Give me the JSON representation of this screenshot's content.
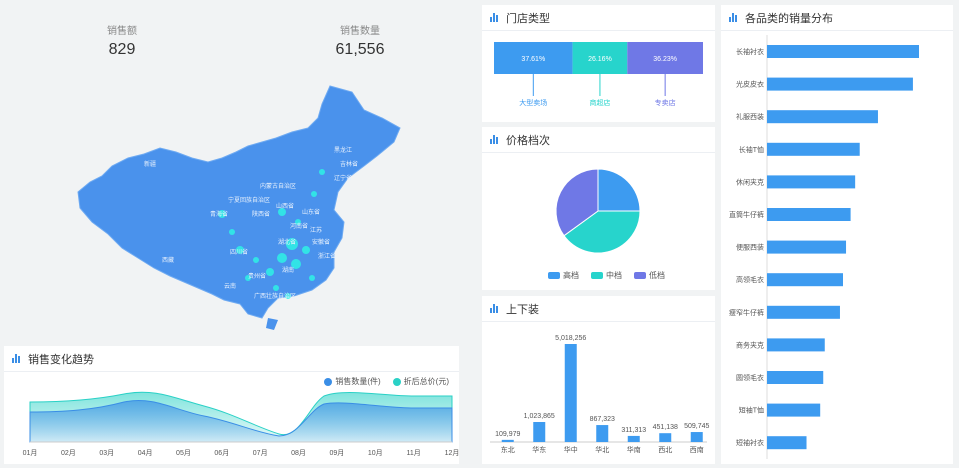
{
  "kpis": [
    {
      "label": "销售额",
      "value": "829"
    },
    {
      "label": "销售数量",
      "value": "61,556"
    }
  ],
  "map": {
    "regions": [
      "新疆",
      "西藏",
      "内蒙古自治区",
      "宁夏回族自治区",
      "青海省",
      "黑龙江",
      "吉林省",
      "辽宁省",
      "山西省",
      "陕西省",
      "四川省",
      "湖北省",
      "安徽省",
      "浙江省",
      "广西壮族自治区",
      "云南",
      "湖南",
      "贵州省",
      "江苏",
      "河南省",
      "山东省"
    ]
  },
  "trend": {
    "title": "销售变化趋势",
    "legend": [
      "销售数量(件)",
      "折后总价(元)"
    ],
    "colors": [
      "#3a8ee6",
      "#2ad1c6"
    ],
    "months": [
      "01月",
      "02月",
      "03月",
      "04月",
      "05月",
      "06月",
      "07月",
      "08月",
      "09月",
      "10月",
      "11月",
      "12月"
    ]
  },
  "store_type": {
    "title": "门店类型",
    "segments": [
      {
        "name": "大型卖场",
        "pct": "37.61%",
        "value": 37.61,
        "color": "#3d9bf0"
      },
      {
        "name": "商超店",
        "pct": "26.16%",
        "value": 26.16,
        "color": "#27d4cc"
      },
      {
        "name": "专卖店",
        "pct": "36.23%",
        "value": 36.23,
        "color": "#6f78e6"
      }
    ]
  },
  "price_tier": {
    "title": "价格档次",
    "slices": [
      {
        "name": "高档",
        "value": 25,
        "color": "#3d9bf0"
      },
      {
        "name": "中档",
        "value": 40,
        "color": "#27d4cc"
      },
      {
        "name": "低档",
        "value": 35,
        "color": "#6f78e6"
      }
    ]
  },
  "apparel": {
    "title": "上下装",
    "chart_data": {
      "type": "bar",
      "categories": [
        "东北",
        "华东",
        "华中",
        "华北",
        "华南",
        "西北",
        "西南"
      ],
      "values": [
        109979,
        1023865,
        5018256,
        867323,
        311313,
        451138,
        509745
      ],
      "labels": [
        "109,979",
        "1,023,865",
        "5,018,256",
        "867,323",
        "311,313",
        "451,138",
        "509,745"
      ],
      "color": "#3d9bf0"
    }
  },
  "category_sales": {
    "title": "各品类的销量分布",
    "chart_data": {
      "type": "bar",
      "orientation": "horizontal",
      "categories": [
        "长袖衬衣",
        "光皮皮衣",
        "礼服西装",
        "长袖T恤",
        "休闲夹克",
        "直筒牛仔裤",
        "便服西装",
        "高领毛衣",
        "瘦窄牛仔裤",
        "商务夹克",
        "圆领毛衣",
        "短袖T恤",
        "短袖衬衣"
      ],
      "values": [
        100,
        96,
        73,
        61,
        58,
        55,
        52,
        50,
        48,
        38,
        37,
        35,
        26
      ],
      "color": "#3d9bf0"
    }
  }
}
